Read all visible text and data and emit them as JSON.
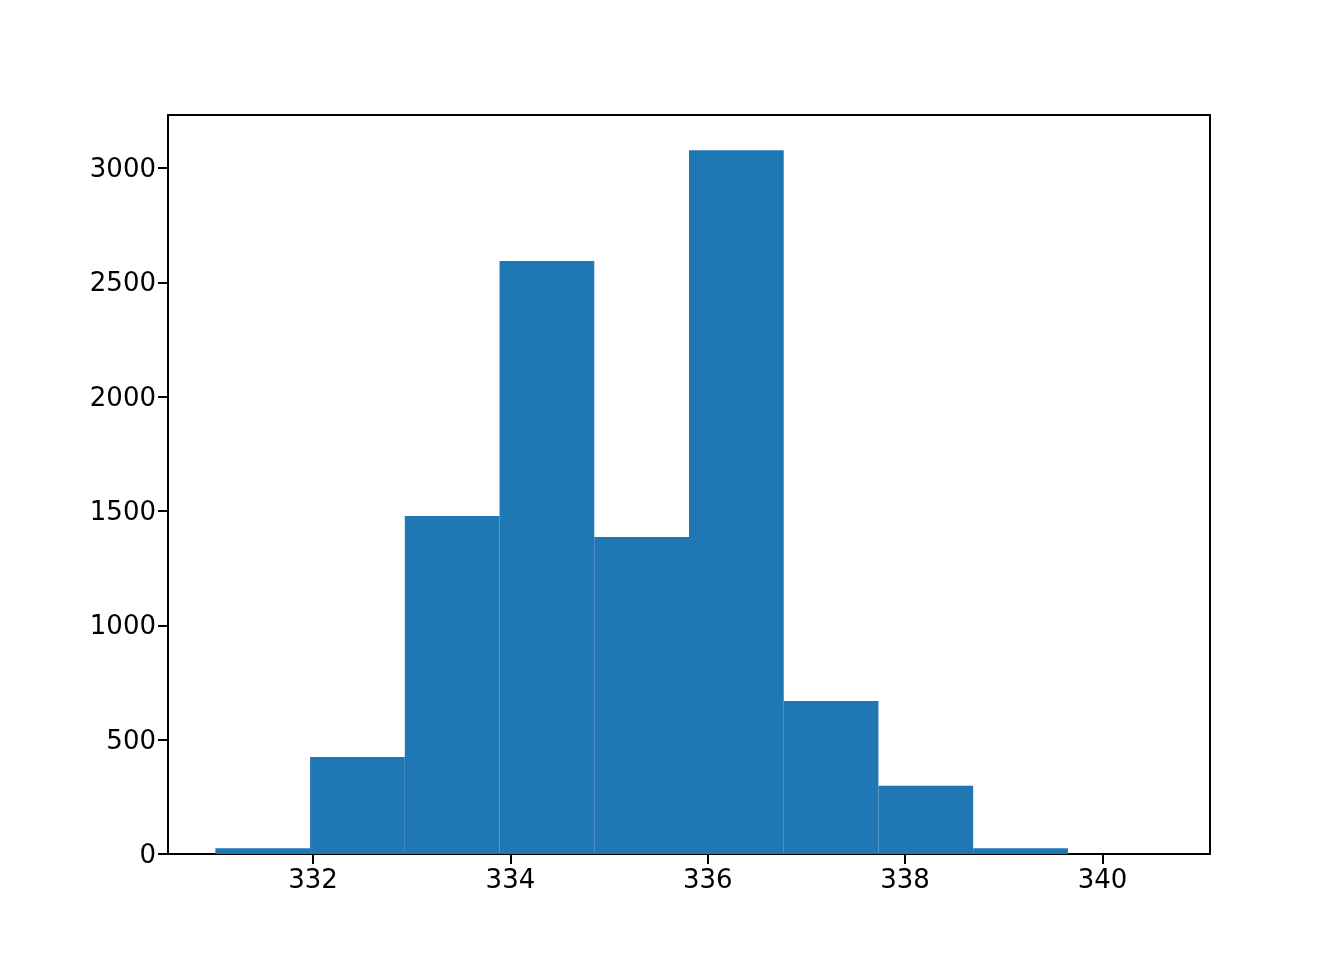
{
  "chart_data": {
    "type": "histogram",
    "bins": [
      331.01,
      331.97,
      332.93,
      333.89,
      334.85,
      335.81,
      336.77,
      337.73,
      338.69,
      339.65,
      340.61
    ],
    "values": [
      25,
      424,
      1478,
      2593,
      1386,
      3078,
      669,
      298,
      25,
      0
    ],
    "color": "#1f77b4",
    "xlim": [
      330.53,
      341.09
    ],
    "ylim": [
      0,
      3232
    ],
    "xticks": [
      332,
      334,
      336,
      338,
      340
    ],
    "yticks": [
      0,
      500,
      1000,
      1500,
      2000,
      2500,
      3000
    ]
  }
}
